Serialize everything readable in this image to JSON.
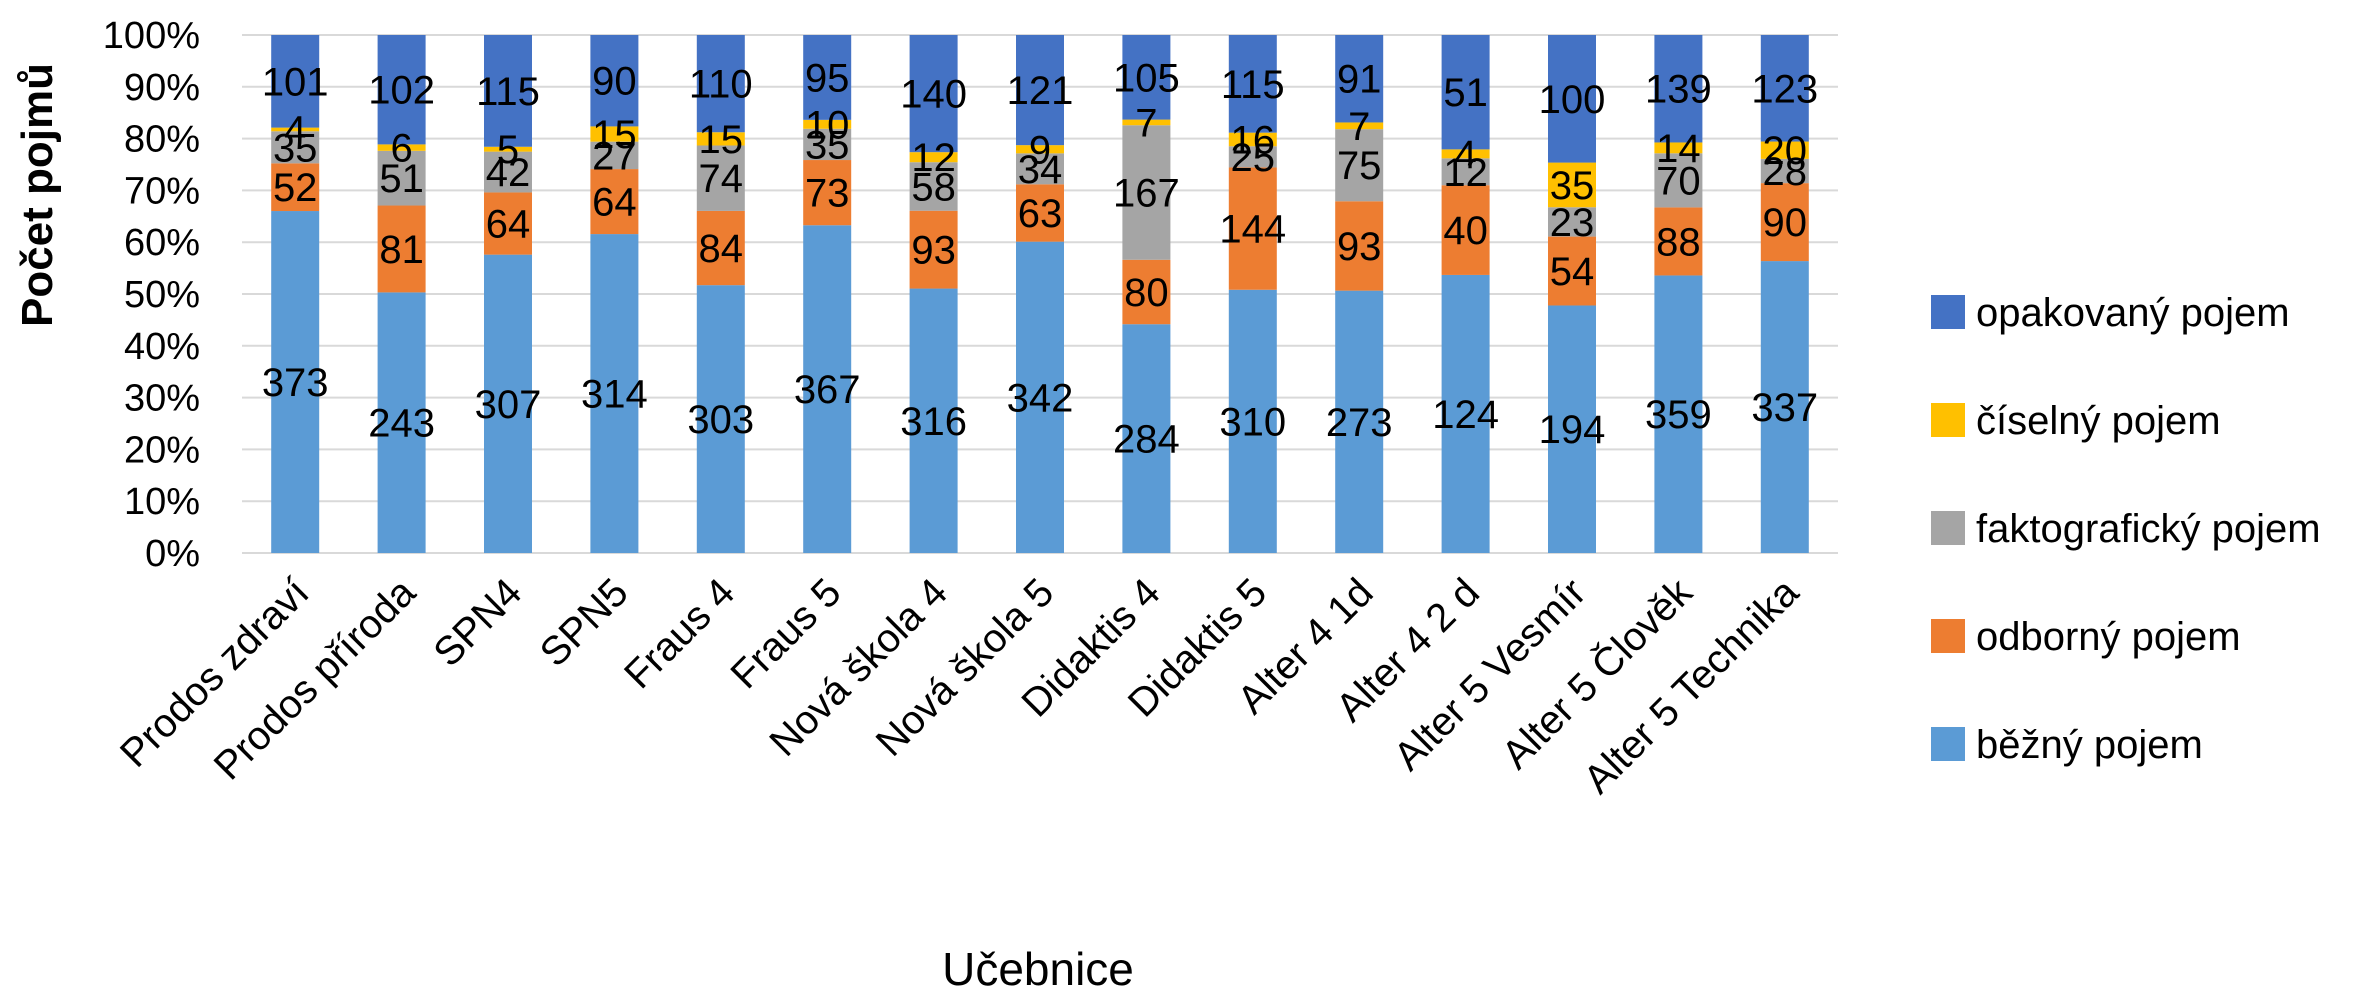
{
  "chart_data": {
    "type": "bar",
    "stacked": "percent",
    "xlabel": "Učebnice",
    "ylabel": "Počet pojmů",
    "ylim": [
      0,
      100
    ],
    "yticks": [
      "0%",
      "10%",
      "20%",
      "30%",
      "40%",
      "50%",
      "60%",
      "70%",
      "80%",
      "90%",
      "100%"
    ],
    "grid": true,
    "legend_position": "right",
    "categories": [
      "Prodos zdraví",
      "Prodos příroda",
      "SPN4",
      "SPN5",
      "Fraus 4",
      "Fraus 5",
      "Nová škola 4",
      "Nová škola 5",
      "Didaktis 4",
      "Didaktis 5",
      "Alter 4 1d",
      "Alter 4 2 d",
      "Alter 5 Vesmír",
      "Alter 5 Člověk",
      "Alter 5 Technika"
    ],
    "series": [
      {
        "name": "běžný pojem",
        "color": "#5B9BD5",
        "values": [
          373,
          243,
          307,
          314,
          303,
          367,
          316,
          342,
          284,
          310,
          273,
          124,
          194,
          359,
          337
        ]
      },
      {
        "name": "odborný pojem",
        "color": "#ED7D31",
        "values": [
          52,
          81,
          64,
          64,
          84,
          73,
          93,
          63,
          80,
          144,
          93,
          40,
          54,
          88,
          90
        ]
      },
      {
        "name": "faktografický pojem",
        "color": "#A5A5A5",
        "values": [
          35,
          51,
          42,
          27,
          74,
          35,
          58,
          34,
          167,
          25,
          75,
          12,
          23,
          70,
          28
        ]
      },
      {
        "name": "číselný pojem",
        "color": "#FFC000",
        "values": [
          4,
          6,
          5,
          15,
          15,
          10,
          12,
          9,
          7,
          16,
          7,
          4,
          35,
          14,
          20
        ]
      },
      {
        "name": "opakovaný pojem",
        "color": "#4472C4",
        "values": [
          101,
          102,
          115,
          90,
          110,
          95,
          140,
          121,
          105,
          115,
          91,
          51,
          100,
          139,
          123
        ]
      }
    ],
    "legend_order": [
      "opakovaný pojem",
      "číselný pojem",
      "faktografický pojem",
      "odborný pojem",
      "běžný pojem"
    ]
  }
}
